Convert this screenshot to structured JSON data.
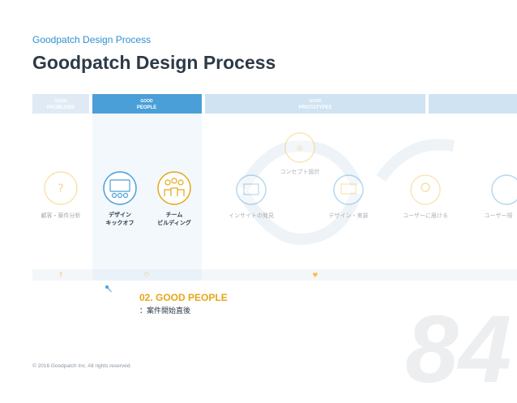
{
  "header": {
    "breadcrumb": "Goodpatch Design Process",
    "title": "Goodpatch Design Process"
  },
  "phases": [
    {
      "top": "GOOD",
      "bottom": "PROBLEMS"
    },
    {
      "top": "GOOD",
      "bottom": "PEOPLE"
    },
    {
      "top": "GOOD",
      "bottom": "PROTOTYPES"
    }
  ],
  "steps": {
    "research": "顧客・案件分析",
    "kickoff_1": "デザイン",
    "kickoff_2": "キックオフ",
    "team_1": "チーム",
    "team_2": "ビルディング",
    "concept": "コンセプト設計",
    "insight": "インサイトの発見",
    "implement": "デザイン・実装",
    "deliver": "ユーザーに届ける",
    "user_next": "ユーザー視"
  },
  "bottom_markers": [
    "?",
    "♡",
    "♥"
  ],
  "callout": {
    "title": "02. GOOD PEOPLE",
    "subtitle": "：案件開始直後"
  },
  "footer": {
    "copyright": "© 2016 Goodpatch Inc. All rights reserved.",
    "page_number": "84"
  },
  "colors": {
    "accent_blue": "#4a9fd8",
    "accent_yellow": "#e3a817",
    "faded_blue": "#cfe3f3",
    "title_text": "#2d3a46"
  }
}
